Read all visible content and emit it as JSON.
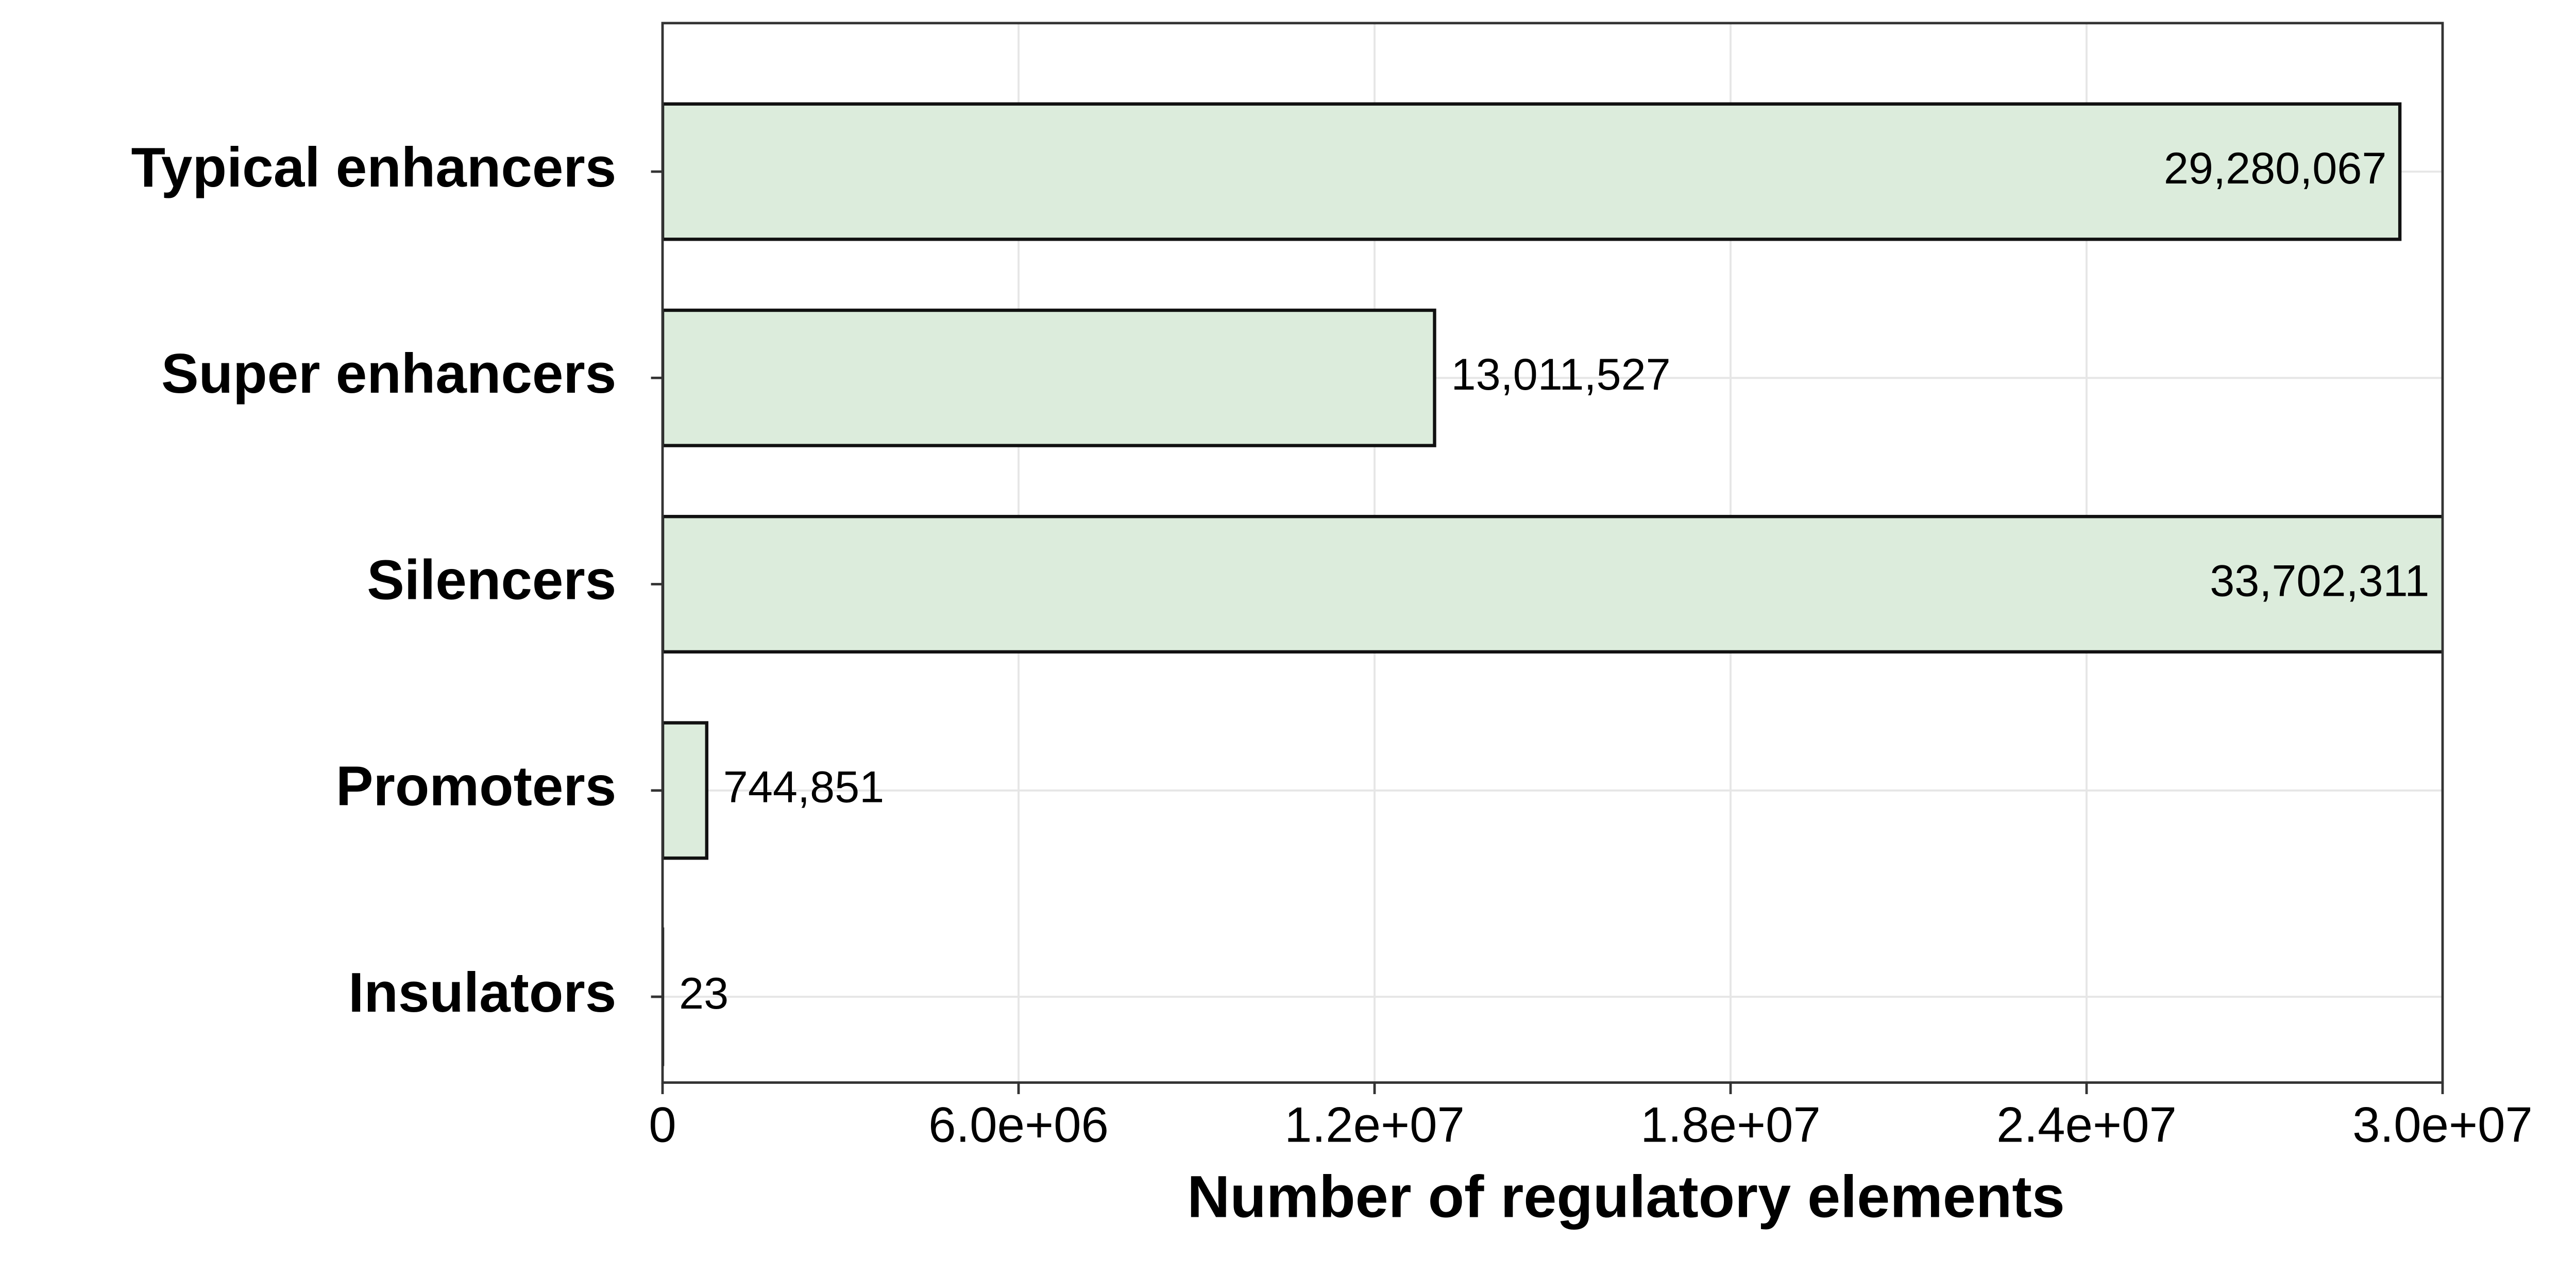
{
  "chart_data": {
    "type": "barh",
    "xlabel": "Number of regulatory elements",
    "categories": [
      "Typical enhancers",
      "Super enhancers",
      "Silencers",
      "Promoters",
      "Insulators"
    ],
    "values": [
      29280067,
      13011527,
      33702311,
      744851,
      23
    ],
    "value_labels": [
      "29,280,067",
      "13,011,527",
      "33,702,311",
      "744,851",
      "23"
    ],
    "color": "#dcecdc",
    "xlim": [
      0,
      30000000
    ],
    "xticks": [
      0,
      {
        "value": 6000000,
        "label": "6.0e+06"
      },
      {
        "value": 12000000,
        "label": "1.2e+07"
      },
      {
        "value": 18000000,
        "label": "1.8e+07"
      },
      {
        "value": 24000000,
        "label": "2.4e+07"
      },
      {
        "value": 30000000,
        "label": "3.0e+07"
      }
    ],
    "grid": true
  }
}
